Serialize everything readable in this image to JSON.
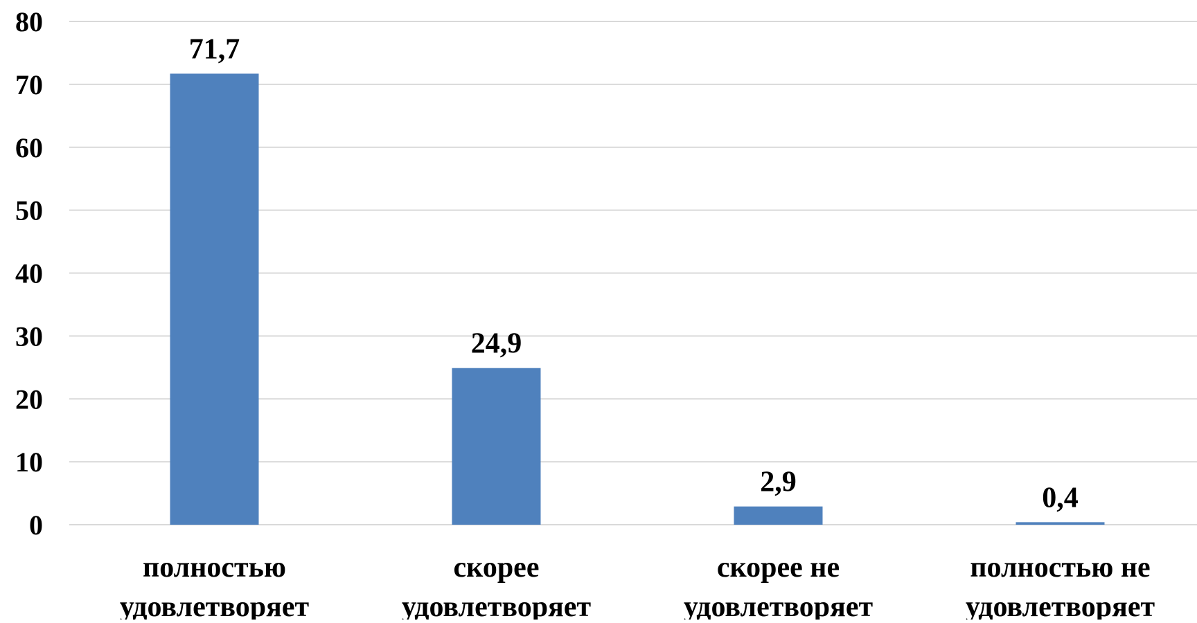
{
  "chart_data": {
    "type": "bar",
    "title": "",
    "xlabel": "",
    "ylabel": "",
    "categories": [
      [
        "полностью",
        "удовлетворяет"
      ],
      [
        "скорее",
        "удовлетворяет"
      ],
      [
        "скорее не",
        "удовлетворяет"
      ],
      [
        "полностью не",
        "удовлетворяет"
      ]
    ],
    "values": [
      71.7,
      24.9,
      2.9,
      0.4
    ],
    "data_labels": [
      "71,7",
      "24,9",
      "2,9",
      "0,4"
    ],
    "y_ticks": [
      0,
      10,
      20,
      30,
      40,
      50,
      60,
      70,
      80
    ],
    "y_tick_labels": [
      "0",
      "10",
      "20",
      "30",
      "40",
      "50",
      "60",
      "70",
      "80"
    ],
    "ylim": [
      0,
      80
    ],
    "grid": true,
    "legend": "none",
    "colors": {
      "bar": "#4f81bd",
      "grid": "#d9d9d9",
      "text": "#000000"
    }
  }
}
